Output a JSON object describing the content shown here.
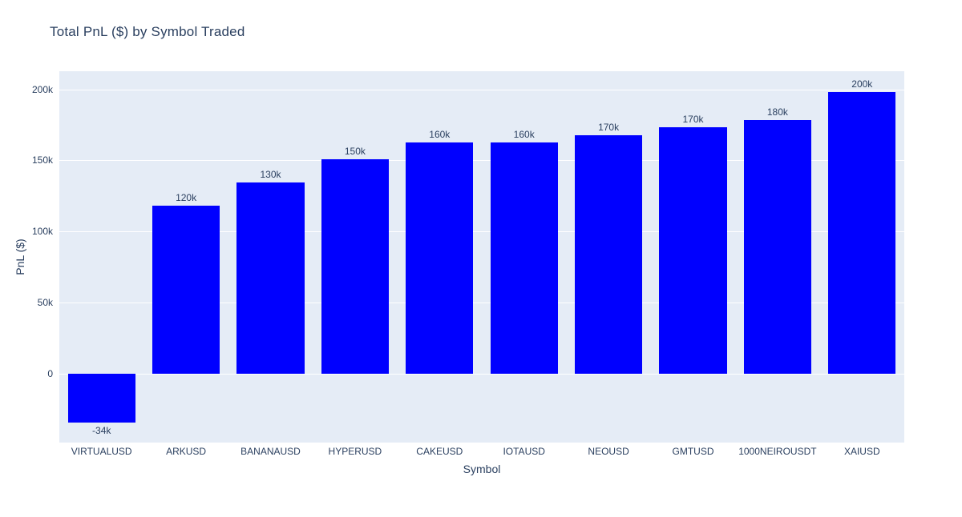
{
  "chart_data": {
    "type": "bar",
    "title": "Total PnL ($) by Symbol Traded",
    "xlabel": "Symbol",
    "ylabel": "PnL ($)",
    "categories": [
      "VIRTUALUSD",
      "ARKUSD",
      "BANANAUSD",
      "HYPERUSD",
      "CAKEUSD",
      "IOTAUSD",
      "NEOUSD",
      "GMTUSD",
      "1000NEIROUSDT",
      "XAIUSD"
    ],
    "values_k": [
      -34.4,
      118.4,
      134.6,
      151.0,
      162.9,
      162.9,
      168.0,
      173.5,
      178.6,
      198.3
    ],
    "bar_labels": [
      "-34k",
      "120k",
      "130k",
      "150k",
      "160k",
      "160k",
      "170k",
      "170k",
      "180k",
      "200k"
    ],
    "ytick_values_k": [
      0,
      50,
      100,
      150,
      200
    ],
    "ytick_labels": [
      "0",
      "50k",
      "100k",
      "150k",
      "200k"
    ],
    "ylim_k": [
      -48.4,
      213.0
    ],
    "grid": true,
    "legend": "none",
    "bar_gap_fraction": 0.2,
    "colors": {
      "bar": "#0000ff",
      "plot_background": "#e5ecf6",
      "grid_line": "#ffffff",
      "text": "#2a3f5f",
      "page_background": "#ffffff"
    }
  }
}
